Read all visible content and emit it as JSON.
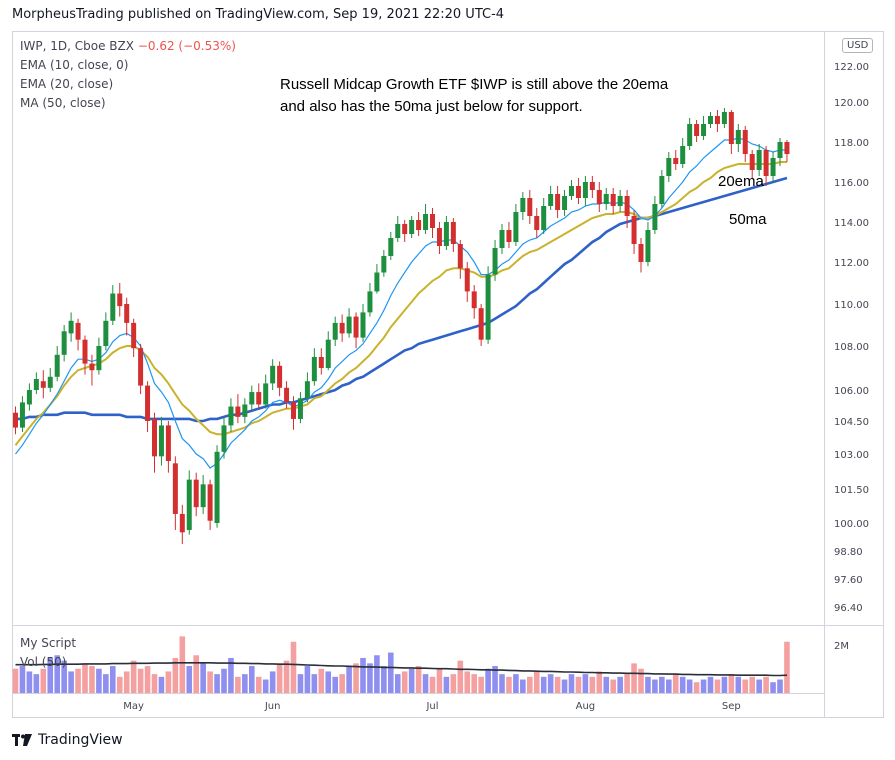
{
  "header": {
    "publisher": "MorpheusTrading published on TradingView.com, Sep 19, 2021 22:20 UTC-4"
  },
  "legend": {
    "symbol": "IWP, 1D, Cboe BZX",
    "change": "−0.62 (−0.53%)",
    "ema10": "EMA (10, close, 0)",
    "ema20": "EMA (20, close)",
    "ma50": "MA (50, close)"
  },
  "volume_legend": {
    "script": "My Script",
    "vol": "Vol (50)"
  },
  "annotations": {
    "line1": "Russell Midcap Growth ETF $IWP is still above the 20ema",
    "line2": "and also has the 50ma just below for support.",
    "label_20ema": "20ema",
    "label_50ma": "50ma"
  },
  "currency_badge": "USD",
  "volume_axis_label": "2M",
  "footer": {
    "brand": "TradingView"
  },
  "colors": {
    "up": "#26a69a",
    "up_body": "#1e8f3f",
    "down": "#d32f2f",
    "ema10": "#2196f3",
    "ema20": "#c9b32d",
    "ma50": "#2f62c9",
    "vol_up": "#8f8ff0",
    "vol_down": "#f4a0a0"
  },
  "chart_data": {
    "type": "candlestick",
    "title": "IWP, 1D, Cboe BZX",
    "y_ticks": [
      "122.00",
      "120.00",
      "118.00",
      "116.00",
      "114.00",
      "112.00",
      "110.00",
      "108.00",
      "106.00",
      "104.50",
      "103.00",
      "101.50",
      "100.00",
      "98.80",
      "97.60",
      "96.40"
    ],
    "y_tick_values": [
      122,
      120,
      118,
      116,
      114,
      112,
      110,
      108,
      106,
      104.5,
      103,
      101.5,
      100,
      98.8,
      97.6,
      96.4
    ],
    "x_ticks": [
      "May",
      "Jun",
      "Jul",
      "Aug",
      "Sep"
    ],
    "x_tick_index": [
      17,
      37,
      60,
      82,
      103
    ],
    "candles": [
      [
        104.9,
        104.2,
        105.2,
        103.9
      ],
      [
        104.2,
        105.4,
        105.7,
        104
      ],
      [
        105.3,
        106.0,
        106.3,
        105
      ],
      [
        106.0,
        106.5,
        106.8,
        105.8
      ],
      [
        106.4,
        106.1,
        106.9,
        105.6
      ],
      [
        106.1,
        106.6,
        107,
        105.9
      ],
      [
        106.6,
        107.6,
        108,
        106.4
      ],
      [
        107.6,
        108.7,
        109,
        107.3
      ],
      [
        108.6,
        109.2,
        109.6,
        108.2
      ],
      [
        109.1,
        108.3,
        109.3,
        107.8
      ],
      [
        108.3,
        107.2,
        108.5,
        106.7
      ],
      [
        107.2,
        106.9,
        107.6,
        106.2
      ],
      [
        106.9,
        108.0,
        108.4,
        106.7
      ],
      [
        108.0,
        109.2,
        109.6,
        107.8
      ],
      [
        109.2,
        110.5,
        110.9,
        109
      ],
      [
        110.5,
        109.9,
        111,
        109.4
      ],
      [
        110.0,
        109.1,
        110.3,
        108.5
      ],
      [
        109.1,
        107.9,
        109.3,
        107.5
      ],
      [
        107.9,
        106.2,
        108.1,
        105.8
      ],
      [
        106.2,
        104.5,
        106.4,
        104
      ],
      [
        104.6,
        102.9,
        104.9,
        102.2
      ],
      [
        102.9,
        104.3,
        104.7,
        102.5
      ],
      [
        104.3,
        102.7,
        104.5,
        102.2
      ],
      [
        102.6,
        100.4,
        102.9,
        99.7
      ],
      [
        100.4,
        99.6,
        100.8,
        99.1
      ],
      [
        99.7,
        101.9,
        102.3,
        99.5
      ],
      [
        101.9,
        100.7,
        102.2,
        100.3
      ],
      [
        100.7,
        101.7,
        102.1,
        100.4
      ],
      [
        101.7,
        100.1,
        101.9,
        99.7
      ],
      [
        100.0,
        103.1,
        103.4,
        99.8
      ],
      [
        103.1,
        104.3,
        104.7,
        102.8
      ],
      [
        104.3,
        105.2,
        105.6,
        104
      ],
      [
        105.2,
        104.7,
        105.8,
        104.4
      ],
      [
        104.7,
        105.3,
        105.6,
        104.4
      ],
      [
        105.3,
        105.9,
        106.2,
        105.0
      ],
      [
        105.9,
        105.3,
        106.3,
        105.1
      ],
      [
        105.3,
        106.3,
        106.7,
        105.1
      ],
      [
        106.3,
        107.1,
        107.4,
        106.0
      ],
      [
        107.1,
        106.1,
        107.3,
        105.7
      ],
      [
        106.1,
        105.4,
        106.4,
        105.1
      ],
      [
        105.4,
        104.6,
        105.7,
        104.1
      ],
      [
        104.6,
        105.6,
        105.9,
        104.4
      ],
      [
        105.6,
        106.4,
        106.8,
        105.4
      ],
      [
        106.4,
        107.5,
        107.9,
        106.2
      ],
      [
        107.5,
        107.0,
        107.9,
        106.7
      ],
      [
        107.0,
        108.3,
        108.7,
        106.9
      ],
      [
        108.3,
        109.1,
        109.4,
        108.0
      ],
      [
        109.1,
        108.6,
        109.5,
        108.2
      ],
      [
        108.6,
        109.4,
        109.8,
        108.4
      ],
      [
        109.4,
        108.4,
        109.6,
        107.9
      ],
      [
        108.4,
        109.6,
        110.0,
        108.2
      ],
      [
        109.6,
        110.6,
        111.0,
        109.4
      ],
      [
        110.6,
        111.5,
        111.9,
        110.5
      ],
      [
        111.5,
        112.3,
        112.6,
        111.3
      ],
      [
        112.3,
        113.2,
        113.5,
        112.1
      ],
      [
        113.2,
        113.9,
        114.3,
        113.0
      ],
      [
        113.9,
        113.4,
        114.1,
        113.0
      ],
      [
        113.4,
        114.1,
        114.3,
        113.2
      ],
      [
        114.1,
        113.6,
        114.5,
        113.3
      ],
      [
        113.6,
        114.4,
        114.9,
        113.4
      ],
      [
        114.4,
        113.7,
        114.7,
        113.2
      ],
      [
        113.7,
        112.8,
        114.0,
        112.4
      ],
      [
        112.8,
        114.0,
        114.3,
        112.6
      ],
      [
        114.0,
        112.9,
        114.2,
        112.5
      ],
      [
        112.9,
        111.7,
        113.1,
        111.2
      ],
      [
        111.7,
        110.6,
        112.0,
        110.1
      ],
      [
        110.6,
        109.8,
        110.9,
        109.3
      ],
      [
        109.8,
        108.3,
        110.0,
        108.0
      ],
      [
        108.3,
        111.4,
        111.8,
        108.1
      ],
      [
        111.4,
        112.7,
        113.1,
        111.1
      ],
      [
        112.7,
        113.6,
        113.9,
        112.4
      ],
      [
        113.6,
        113.0,
        114.0,
        112.7
      ],
      [
        113.0,
        114.5,
        114.9,
        112.8
      ],
      [
        114.5,
        115.2,
        115.5,
        114.1
      ],
      [
        115.2,
        114.3,
        115.6,
        113.9
      ],
      [
        114.3,
        113.6,
        114.7,
        113.2
      ],
      [
        113.6,
        114.8,
        115.2,
        113.4
      ],
      [
        114.8,
        115.4,
        115.8,
        114.6
      ],
      [
        115.4,
        114.6,
        115.8,
        114.2
      ],
      [
        114.6,
        115.3,
        115.6,
        114.3
      ],
      [
        115.3,
        115.8,
        116.1,
        115.1
      ],
      [
        115.8,
        115.2,
        116.2,
        114.9
      ],
      [
        115.2,
        116.0,
        116.3,
        114.8
      ],
      [
        116.0,
        115.6,
        116.3,
        115.2
      ],
      [
        115.6,
        114.9,
        116.0,
        114.5
      ],
      [
        114.9,
        115.4,
        115.7,
        114.6
      ],
      [
        115.4,
        114.8,
        115.7,
        114.4
      ],
      [
        114.8,
        115.3,
        115.6,
        114.5
      ],
      [
        115.3,
        114.3,
        115.6,
        113.7
      ],
      [
        114.3,
        112.9,
        114.6,
        112.4
      ],
      [
        112.9,
        112.0,
        113.2,
        111.5
      ],
      [
        112.0,
        113.6,
        114.0,
        111.8
      ],
      [
        113.6,
        114.9,
        115.3,
        113.4
      ],
      [
        114.9,
        116.3,
        116.6,
        114.7
      ],
      [
        116.3,
        117.2,
        117.5,
        116.0
      ],
      [
        117.2,
        116.9,
        117.6,
        116.6
      ],
      [
        116.9,
        117.8,
        118.2,
        116.7
      ],
      [
        117.8,
        118.9,
        119.2,
        117.6
      ],
      [
        118.9,
        118.3,
        119.1,
        118.0
      ],
      [
        118.3,
        118.9,
        119.3,
        118.1
      ],
      [
        118.9,
        119.3,
        119.5,
        118.7
      ],
      [
        119.3,
        118.9,
        119.6,
        118.5
      ],
      [
        118.9,
        119.5,
        119.7,
        118.7
      ],
      [
        119.5,
        117.9,
        119.6,
        117.4
      ],
      [
        117.9,
        118.6,
        118.9,
        117.5
      ],
      [
        118.6,
        117.4,
        118.8,
        117.0
      ],
      [
        117.4,
        116.6,
        117.6,
        116.2
      ],
      [
        116.6,
        117.6,
        117.9,
        116.3
      ],
      [
        117.6,
        116.3,
        117.8,
        115.8
      ],
      [
        116.3,
        117.2,
        117.5,
        116.0
      ],
      [
        117.2,
        118.0,
        118.2,
        116.8
      ],
      [
        118.0,
        117.4,
        118.1,
        117.0
      ]
    ],
    "ema10": [
      103.0,
      103.4,
      103.9,
      104.4,
      104.8,
      105.3,
      105.8,
      106.4,
      107.0,
      107.4,
      107.4,
      107.3,
      107.4,
      107.7,
      108.2,
      108.5,
      108.6,
      108.4,
      108.0,
      107.2,
      106.3,
      105.9,
      105.4,
      104.5,
      103.7,
      103.4,
      103.0,
      102.8,
      102.4,
      102.6,
      103.0,
      103.5,
      103.8,
      104.1,
      104.5,
      104.7,
      105.0,
      105.4,
      105.5,
      105.4,
      105.2,
      105.3,
      105.5,
      105.9,
      106.1,
      106.5,
      107.0,
      107.3,
      107.6,
      107.8,
      108.1,
      108.6,
      109.1,
      109.7,
      110.4,
      111.0,
      111.5,
      112.0,
      112.4,
      112.8,
      113.0,
      113.0,
      113.1,
      113.1,
      112.8,
      112.5,
      112.0,
      111.4,
      111.4,
      111.6,
      111.9,
      112.1,
      112.5,
      112.9,
      113.1,
      113.2,
      113.5,
      113.8,
      114.0,
      114.2,
      114.5,
      114.6,
      114.8,
      114.9,
      114.9,
      115.0,
      114.9,
      115.0,
      114.9,
      114.6,
      114.2,
      114.1,
      114.3,
      114.7,
      115.2,
      115.6,
      116.0,
      116.5,
      116.8,
      117.2,
      117.5,
      117.8,
      118.1,
      118.1,
      118.2,
      118.1,
      117.9,
      117.8,
      117.6,
      117.5,
      117.6,
      117.6
    ],
    "ema20": [
      103.4,
      103.8,
      104.2,
      104.6,
      104.9,
      105.3,
      105.7,
      106.2,
      106.6,
      106.9,
      107.0,
      107.1,
      107.2,
      107.4,
      107.7,
      107.9,
      108.0,
      108.0,
      107.8,
      107.5,
      107.0,
      106.7,
      106.3,
      105.8,
      105.3,
      105.0,
      104.6,
      104.3,
      104.0,
      103.9,
      103.9,
      104.0,
      104.1,
      104.2,
      104.4,
      104.5,
      104.7,
      104.9,
      105.0,
      105.1,
      105.1,
      105.2,
      105.3,
      105.6,
      105.7,
      106.0,
      106.3,
      106.5,
      106.8,
      107.0,
      107.3,
      107.6,
      108.0,
      108.4,
      108.9,
      109.3,
      109.7,
      110.1,
      110.5,
      110.8,
      111.1,
      111.3,
      111.6,
      111.7,
      111.7,
      111.6,
      111.5,
      111.3,
      111.3,
      111.4,
      111.6,
      111.7,
      112.0,
      112.3,
      112.5,
      112.6,
      112.8,
      113.0,
      113.2,
      113.4,
      113.6,
      113.8,
      114.0,
      114.2,
      114.3,
      114.4,
      114.4,
      114.5,
      114.5,
      114.4,
      114.2,
      114.2,
      114.3,
      114.5,
      114.7,
      114.9,
      115.2,
      115.5,
      115.7,
      116.0,
      116.2,
      116.5,
      116.7,
      116.8,
      116.9,
      116.9,
      116.9,
      116.9,
      116.9,
      116.9,
      117.0,
      117.0
    ],
    "ma50": [
      104.6,
      104.6,
      104.7,
      104.7,
      104.8,
      104.8,
      104.8,
      104.9,
      104.9,
      104.9,
      104.9,
      104.8,
      104.8,
      104.8,
      104.8,
      104.8,
      104.7,
      104.7,
      104.7,
      104.6,
      104.6,
      104.6,
      104.6,
      104.6,
      104.6,
      104.6,
      104.5,
      104.5,
      104.6,
      104.6,
      104.7,
      104.8,
      104.8,
      104.9,
      105.0,
      105.1,
      105.2,
      105.3,
      105.3,
      105.4,
      105.4,
      105.5,
      105.6,
      105.7,
      105.8,
      105.9,
      106.0,
      106.2,
      106.3,
      106.5,
      106.6,
      106.8,
      107.0,
      107.2,
      107.4,
      107.6,
      107.8,
      107.9,
      108.1,
      108.2,
      108.3,
      108.4,
      108.5,
      108.6,
      108.7,
      108.8,
      108.9,
      109.0,
      109.1,
      109.3,
      109.5,
      109.7,
      109.9,
      110.2,
      110.5,
      110.7,
      111.0,
      111.3,
      111.6,
      111.9,
      112.1,
      112.4,
      112.7,
      113.0,
      113.2,
      113.5,
      113.7,
      113.9,
      114.0,
      114.1,
      114.2,
      114.2,
      114.3,
      114.4,
      114.5,
      114.6,
      114.7,
      114.8,
      114.9,
      115.0,
      115.1,
      115.2,
      115.3,
      115.4,
      115.5,
      115.6,
      115.7,
      115.8,
      115.9,
      116.0,
      116.1,
      116.2
    ],
    "volume": [
      0.9,
      1.0,
      0.8,
      0.7,
      0.9,
      1.3,
      1.4,
      1.2,
      0.8,
      0.9,
      1.1,
      1.0,
      0.9,
      0.7,
      1.0,
      0.6,
      0.8,
      1.2,
      0.9,
      1.0,
      0.7,
      0.6,
      0.8,
      1.3,
      2.1,
      1.0,
      1.4,
      1.1,
      0.8,
      0.7,
      0.9,
      1.3,
      0.6,
      0.7,
      1.0,
      0.6,
      0.5,
      0.8,
      1.1,
      1.2,
      1.9,
      0.7,
      1.0,
      0.7,
      0.9,
      0.8,
      0.6,
      0.7,
      1.0,
      1.1,
      1.3,
      1.1,
      1.4,
      1.0,
      1.5,
      0.7,
      0.8,
      0.9,
      1.0,
      0.7,
      0.6,
      0.9,
      0.6,
      0.7,
      1.2,
      0.8,
      0.7,
      0.6,
      0.9,
      1.0,
      0.7,
      0.6,
      0.7,
      0.5,
      0.6,
      0.8,
      0.6,
      0.7,
      0.6,
      0.5,
      0.7,
      0.6,
      0.7,
      0.6,
      0.8,
      0.6,
      0.5,
      0.6,
      0.7,
      1.1,
      0.9,
      0.6,
      0.5,
      0.6,
      0.5,
      0.7,
      0.6,
      0.5,
      0.4,
      0.5,
      0.6,
      0.5,
      0.6,
      0.7,
      0.6,
      0.5,
      0.6,
      0.5,
      0.6,
      0.4,
      0.5,
      1.9
    ],
    "vol_ma": [
      1.05,
      1.05,
      1.05,
      1.05,
      1.06,
      1.06,
      1.07,
      1.07,
      1.07,
      1.07,
      1.08,
      1.08,
      1.08,
      1.08,
      1.09,
      1.09,
      1.09,
      1.1,
      1.1,
      1.1,
      1.11,
      1.11,
      1.11,
      1.12,
      1.12,
      1.12,
      1.12,
      1.12,
      1.12,
      1.11,
      1.11,
      1.11,
      1.1,
      1.1,
      1.09,
      1.09,
      1.08,
      1.08,
      1.07,
      1.07,
      1.06,
      1.05,
      1.04,
      1.03,
      1.02,
      1.01,
      1.0,
      1.0,
      0.99,
      0.98,
      0.97,
      0.97,
      0.96,
      0.95,
      0.95,
      0.94,
      0.93,
      0.93,
      0.92,
      0.92,
      0.91,
      0.9,
      0.9,
      0.89,
      0.88,
      0.88,
      0.87,
      0.86,
      0.86,
      0.85,
      0.85,
      0.84,
      0.83,
      0.82,
      0.82,
      0.81,
      0.8,
      0.8,
      0.79,
      0.78,
      0.78,
      0.77,
      0.76,
      0.76,
      0.75,
      0.75,
      0.74,
      0.74,
      0.73,
      0.73,
      0.72,
      0.72,
      0.71,
      0.71,
      0.7,
      0.7,
      0.69,
      0.69,
      0.68,
      0.68,
      0.68,
      0.67,
      0.67,
      0.67,
      0.66,
      0.66,
      0.66,
      0.66,
      0.66,
      0.65,
      0.65,
      0.66
    ]
  }
}
